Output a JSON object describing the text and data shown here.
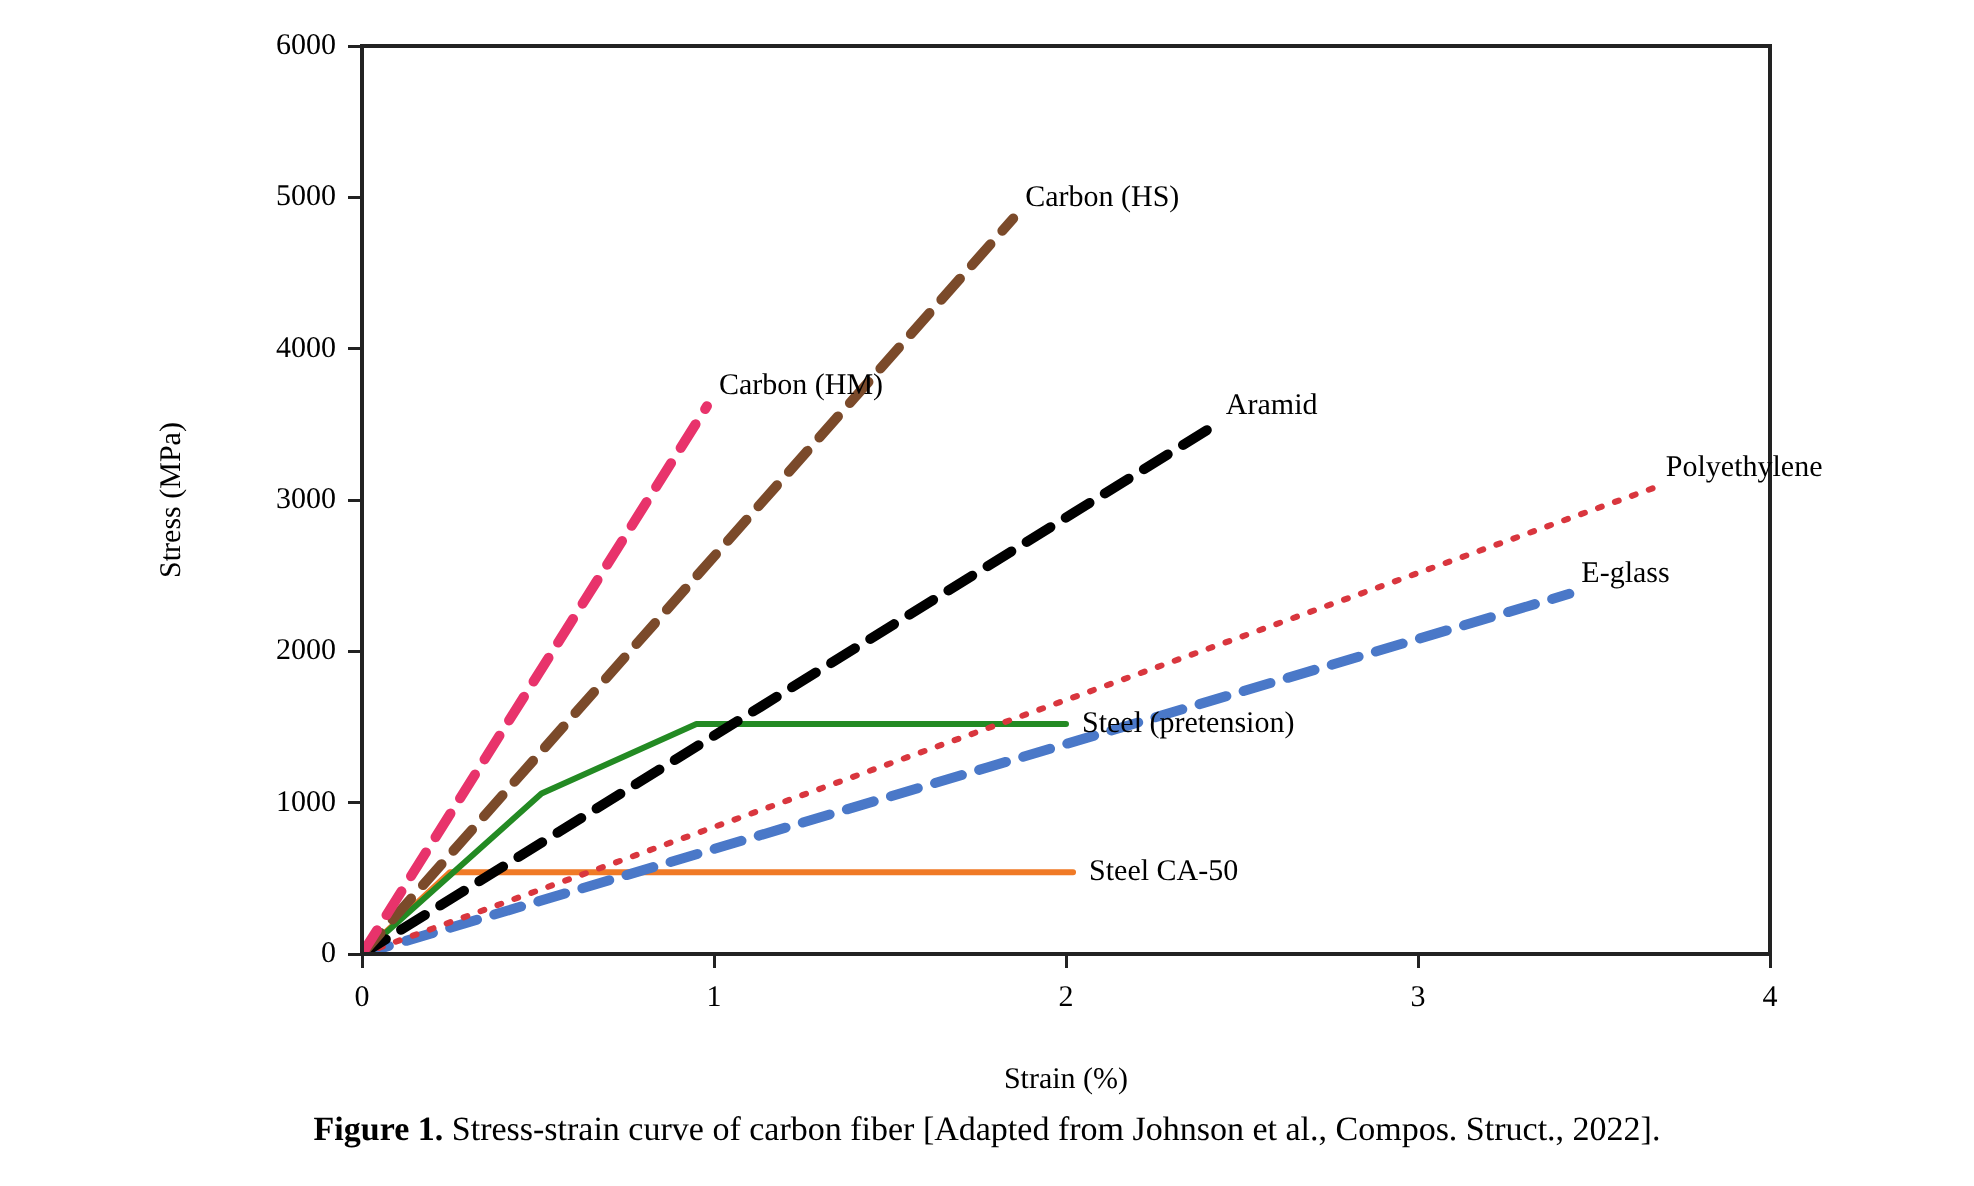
{
  "chart_data": {
    "type": "line",
    "xlabel": "Strain (%)",
    "ylabel": "Stress (MPa)",
    "xlim": [
      0,
      4
    ],
    "xticks": [
      0,
      1,
      2,
      3,
      4
    ],
    "ylim": [
      0,
      6000
    ],
    "yticks": [
      0,
      1000,
      2000,
      3000,
      4000,
      5000,
      6000
    ],
    "grid": false,
    "legend": false,
    "marker": "none",
    "series": [
      {
        "name": "Carbon (HM)",
        "color": "#e8336b",
        "line_style": "dashed",
        "x": [
          0,
          0.98
        ],
        "values": [
          0,
          3620
        ]
      },
      {
        "name": "Carbon (HS)",
        "color": "#7b4a2a",
        "line_style": "dashed",
        "x": [
          0,
          1.85
        ],
        "values": [
          0,
          4860
        ]
      },
      {
        "name": "Aramid",
        "color": "#000000",
        "line_style": "dashed",
        "x": [
          0,
          2.42
        ],
        "values": [
          0,
          3490
        ]
      },
      {
        "name": "Polyethylene",
        "color": "#d9363e",
        "line_style": "dotted",
        "x": [
          0,
          3.67
        ],
        "values": [
          0,
          3080
        ]
      },
      {
        "name": "E-glass",
        "color": "#4a78c8",
        "line_style": "dashed",
        "x": [
          0,
          3.43
        ],
        "values": [
          0,
          2380
        ]
      },
      {
        "name": "Steel (pretension)",
        "color": "#238a23",
        "line_style": "solid",
        "x": [
          0,
          0.51,
          0.95,
          2.0
        ],
        "values": [
          0,
          1060,
          1520,
          1520
        ]
      },
      {
        "name": "Steel CA-50",
        "color": "#f07a26",
        "line_style": "solid",
        "x": [
          0,
          0.25,
          2.02
        ],
        "values": [
          0,
          540,
          540
        ]
      }
    ],
    "annotations": [
      "Figure 1. Stress-strain curve of carbon fiber [Adapted from Johnson et al., Compos. Struct., 2022]."
    ]
  }
}
